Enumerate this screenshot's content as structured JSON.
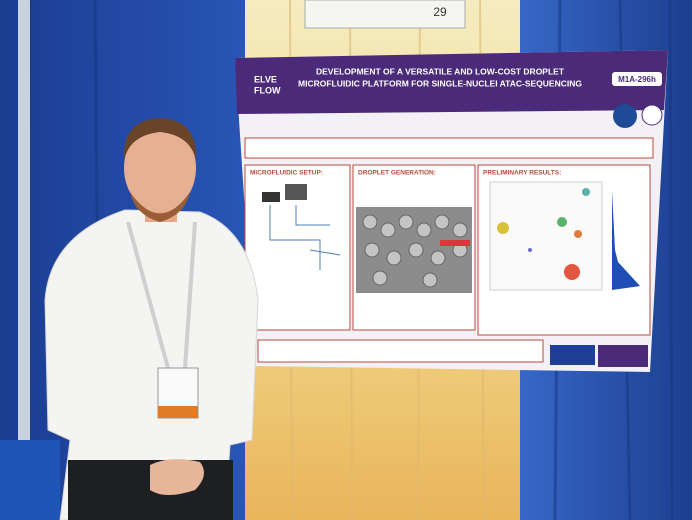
{
  "sign": {
    "number": "29"
  },
  "poster": {
    "logo": [
      "ELVE",
      "FLOW"
    ],
    "code": "M1A-296h",
    "title": [
      "DEVELOPMENT OF A VERSATILE AND LOW-COST DROPLET",
      "MICROFLUIDIC PLATFORM FOR SINGLE-NUCLEI ATAC-SEQUENCING"
    ],
    "sections": [
      "MICROFLUIDIC SETUP:",
      "DROPLET GENERATION:",
      "PRELIMINARY RESULTS:"
    ]
  }
}
